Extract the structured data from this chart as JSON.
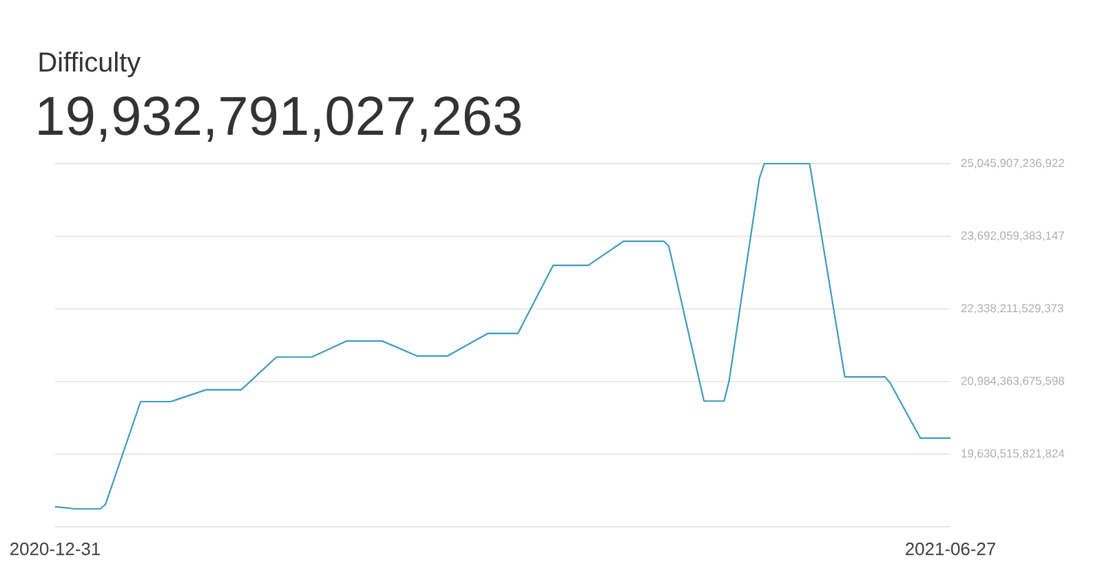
{
  "chart_data": {
    "type": "line",
    "title": "Difficulty",
    "subtitle": "19,932,791,027,263",
    "x": [
      "2020-12-31",
      "2021-01-04",
      "2021-01-09",
      "2021-01-10",
      "2021-01-17",
      "2021-01-23",
      "2021-01-30",
      "2021-02-06",
      "2021-02-13",
      "2021-02-20",
      "2021-02-27",
      "2021-03-06",
      "2021-03-13",
      "2021-03-19",
      "2021-03-27",
      "2021-04-02",
      "2021-04-09",
      "2021-04-16",
      "2021-04-23",
      "2021-05-01",
      "2021-05-02",
      "2021-05-09",
      "2021-05-13",
      "2021-05-14",
      "2021-05-20",
      "2021-05-21",
      "2021-05-30",
      "2021-06-06",
      "2021-06-14",
      "2021-06-15",
      "2021-06-21",
      "2021-06-27"
    ],
    "series": [
      {
        "color": "#3a9bbf",
        "values": [
          18650000000000,
          18610000000000,
          18610000000000,
          18690000000000,
          20610000000000,
          20610000000000,
          20830000000000,
          20830000000000,
          21440000000000,
          21440000000000,
          21740000000000,
          21740000000000,
          21460000000000,
          21460000000000,
          21880000000000,
          21880000000000,
          23150000000000,
          23150000000000,
          23600000000000,
          23600000000000,
          23510000000000,
          20620000000000,
          20620000000000,
          21000000000000,
          24770000000000,
          25045907236922,
          25045907236922,
          21070000000000,
          21070000000000,
          20960000000000,
          19930000000000,
          19930000000000
        ]
      }
    ],
    "xlim": [
      "2020-12-31",
      "2021-06-27"
    ],
    "xticks": [
      {
        "value": "2020-12-31",
        "label": "2020-12-31"
      },
      {
        "value": "2021-06-27",
        "label": "2021-06-27"
      }
    ],
    "ylim": [
      18276667968049,
      25045907236922
    ],
    "yticks": [
      {
        "value": 18276667968049,
        "label": null
      },
      {
        "value": 19630515821824,
        "label": "19,630,515,821,824"
      },
      {
        "value": 20984363675598,
        "label": "20,984,363,675,598"
      },
      {
        "value": 22338211529373,
        "label": "22,338,211,529,373"
      },
      {
        "value": 23692059383147,
        "label": "23,692,059,383,147"
      },
      {
        "value": 25045907236922,
        "label": "25,045,907,236,922"
      }
    ],
    "grid": "y"
  }
}
